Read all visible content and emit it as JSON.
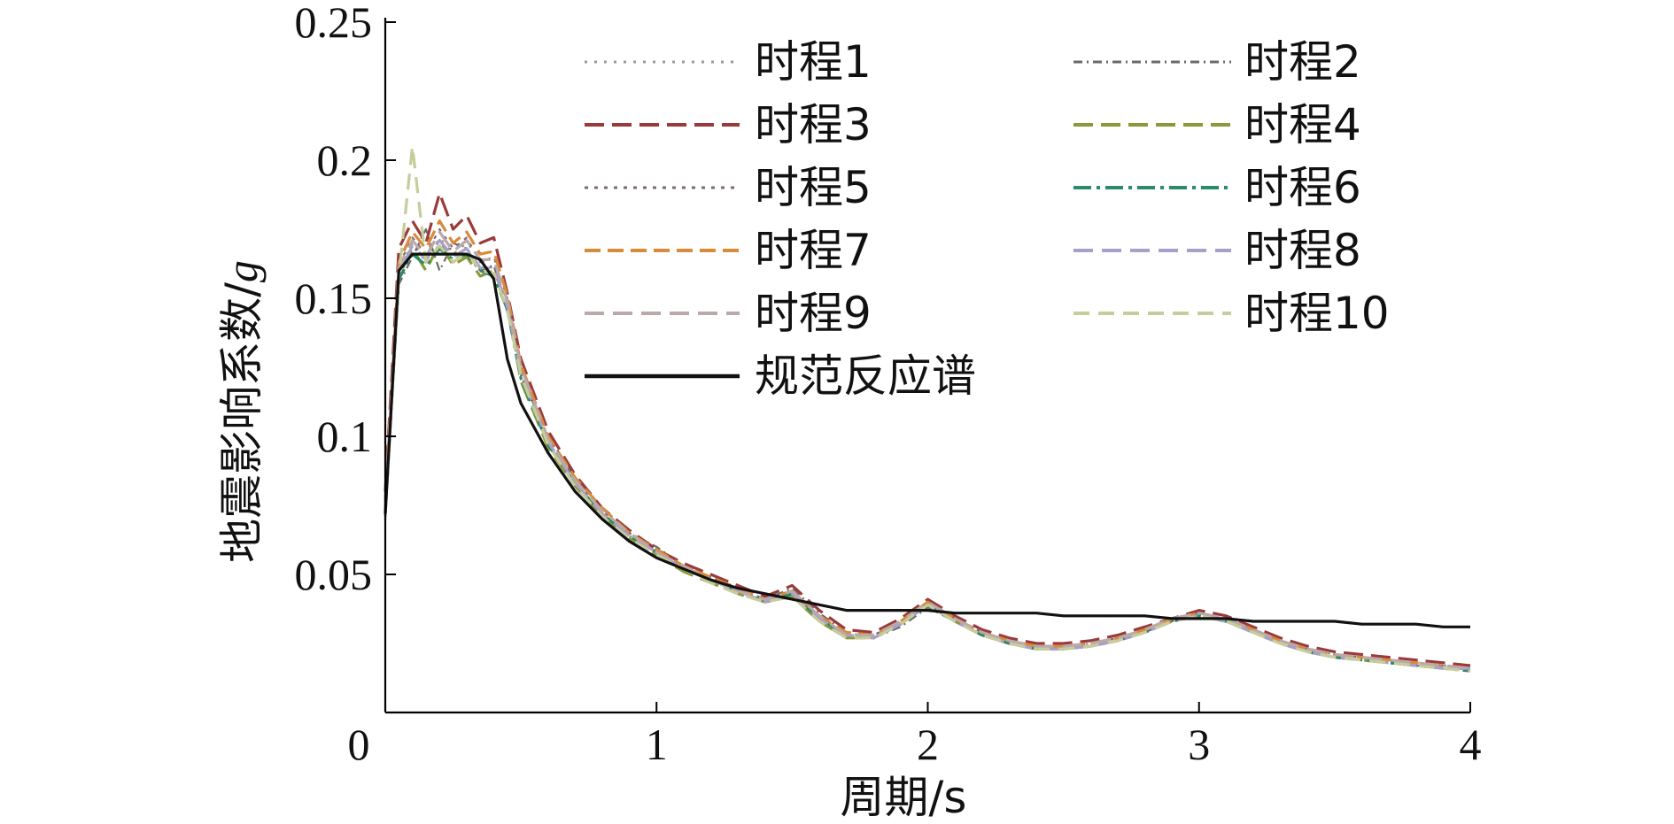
{
  "chart_data": {
    "type": "line",
    "title": "",
    "xlabel": "周期/s",
    "ylabel_main": "地震影响系数/",
    "ylabel_italic": "g",
    "xlim": [
      0,
      4
    ],
    "ylim": [
      0,
      0.25
    ],
    "x_ticks": [
      0,
      1,
      2,
      3,
      4
    ],
    "x_tick_labels": [
      "0",
      "1",
      "2",
      "3",
      "4"
    ],
    "y_ticks": [
      0.05,
      0.1,
      0.15,
      0.2,
      0.25
    ],
    "y_tick_labels": [
      "0.05",
      "0.1",
      "0.15",
      "0.2",
      "0.25"
    ],
    "grid": false,
    "legend_position": "top-right",
    "x": [
      0.0,
      0.05,
      0.1,
      0.15,
      0.2,
      0.25,
      0.3,
      0.35,
      0.4,
      0.45,
      0.5,
      0.6,
      0.7,
      0.8,
      0.9,
      1.0,
      1.1,
      1.2,
      1.3,
      1.4,
      1.5,
      1.6,
      1.7,
      1.8,
      1.9,
      2.0,
      2.1,
      2.2,
      2.3,
      2.4,
      2.5,
      2.6,
      2.7,
      2.8,
      2.9,
      3.0,
      3.1,
      3.2,
      3.3,
      3.4,
      3.5,
      3.6,
      3.7,
      3.8,
      3.9,
      4.0
    ],
    "series": [
      {
        "name": "时程1",
        "color": "#9a9a9a",
        "dash": "3 8",
        "width": 2.2,
        "values": [
          0.075,
          0.16,
          0.17,
          0.163,
          0.172,
          0.166,
          0.17,
          0.165,
          0.16,
          0.15,
          0.125,
          0.098,
          0.083,
          0.072,
          0.064,
          0.058,
          0.052,
          0.048,
          0.044,
          0.04,
          0.043,
          0.034,
          0.028,
          0.028,
          0.033,
          0.04,
          0.034,
          0.029,
          0.026,
          0.024,
          0.024,
          0.025,
          0.027,
          0.03,
          0.034,
          0.036,
          0.034,
          0.03,
          0.026,
          0.023,
          0.021,
          0.02,
          0.019,
          0.018,
          0.017,
          0.017
        ]
      },
      {
        "name": "时程2",
        "color": "#6a6a6a",
        "dash": "10 5 2 5",
        "width": 2.2,
        "values": [
          0.07,
          0.155,
          0.165,
          0.175,
          0.16,
          0.17,
          0.168,
          0.16,
          0.162,
          0.145,
          0.122,
          0.1,
          0.085,
          0.074,
          0.065,
          0.06,
          0.053,
          0.049,
          0.045,
          0.041,
          0.045,
          0.036,
          0.029,
          0.027,
          0.031,
          0.038,
          0.033,
          0.028,
          0.025,
          0.023,
          0.023,
          0.024,
          0.026,
          0.029,
          0.033,
          0.035,
          0.033,
          0.029,
          0.025,
          0.022,
          0.02,
          0.019,
          0.018,
          0.017,
          0.016,
          0.016
        ]
      },
      {
        "name": "时程3",
        "color": "#9b3a3a",
        "dash": "22 9",
        "width": 3.2,
        "values": [
          0.08,
          0.168,
          0.178,
          0.17,
          0.188,
          0.175,
          0.18,
          0.17,
          0.172,
          0.152,
          0.128,
          0.102,
          0.086,
          0.074,
          0.066,
          0.059,
          0.054,
          0.05,
          0.046,
          0.042,
          0.046,
          0.037,
          0.03,
          0.029,
          0.034,
          0.041,
          0.035,
          0.03,
          0.027,
          0.025,
          0.025,
          0.026,
          0.028,
          0.031,
          0.034,
          0.037,
          0.035,
          0.031,
          0.027,
          0.024,
          0.022,
          0.021,
          0.02,
          0.019,
          0.018,
          0.017
        ]
      },
      {
        "name": "时程4",
        "color": "#8a9a3a",
        "dash": "22 9",
        "width": 3.2,
        "values": [
          0.072,
          0.158,
          0.168,
          0.16,
          0.17,
          0.162,
          0.165,
          0.158,
          0.16,
          0.148,
          0.12,
          0.096,
          0.082,
          0.071,
          0.063,
          0.057,
          0.051,
          0.047,
          0.043,
          0.04,
          0.042,
          0.033,
          0.027,
          0.027,
          0.032,
          0.039,
          0.033,
          0.028,
          0.025,
          0.023,
          0.023,
          0.024,
          0.026,
          0.029,
          0.033,
          0.035,
          0.033,
          0.029,
          0.025,
          0.022,
          0.02,
          0.019,
          0.018,
          0.017,
          0.016,
          0.016
        ]
      },
      {
        "name": "时程5",
        "color": "#7a6a7a",
        "dash": "4 7",
        "width": 2.2,
        "values": [
          0.078,
          0.162,
          0.172,
          0.166,
          0.175,
          0.168,
          0.172,
          0.163,
          0.165,
          0.15,
          0.124,
          0.099,
          0.084,
          0.073,
          0.065,
          0.058,
          0.053,
          0.048,
          0.044,
          0.041,
          0.044,
          0.035,
          0.028,
          0.028,
          0.033,
          0.04,
          0.034,
          0.029,
          0.026,
          0.024,
          0.024,
          0.025,
          0.027,
          0.03,
          0.034,
          0.036,
          0.034,
          0.03,
          0.026,
          0.023,
          0.021,
          0.02,
          0.019,
          0.018,
          0.017,
          0.016
        ]
      },
      {
        "name": "时程6",
        "color": "#2a8a6a",
        "dash": "20 6 4 6",
        "width": 3.2,
        "values": [
          0.074,
          0.157,
          0.166,
          0.162,
          0.168,
          0.164,
          0.166,
          0.16,
          0.158,
          0.146,
          0.121,
          0.097,
          0.083,
          0.072,
          0.064,
          0.058,
          0.052,
          0.048,
          0.044,
          0.04,
          0.043,
          0.034,
          0.028,
          0.027,
          0.032,
          0.039,
          0.033,
          0.028,
          0.025,
          0.023,
          0.023,
          0.024,
          0.026,
          0.029,
          0.033,
          0.035,
          0.033,
          0.029,
          0.025,
          0.022,
          0.02,
          0.019,
          0.018,
          0.017,
          0.016,
          0.015
        ]
      },
      {
        "name": "时程7",
        "color": "#d98a3a",
        "dash": "18 8",
        "width": 3.2,
        "values": [
          0.076,
          0.163,
          0.174,
          0.168,
          0.178,
          0.17,
          0.174,
          0.166,
          0.167,
          0.151,
          0.126,
          0.1,
          0.085,
          0.074,
          0.065,
          0.059,
          0.053,
          0.049,
          0.045,
          0.041,
          0.044,
          0.035,
          0.029,
          0.028,
          0.033,
          0.04,
          0.034,
          0.029,
          0.026,
          0.024,
          0.024,
          0.025,
          0.027,
          0.03,
          0.034,
          0.036,
          0.034,
          0.03,
          0.026,
          0.023,
          0.021,
          0.02,
          0.019,
          0.018,
          0.017,
          0.016
        ]
      },
      {
        "name": "时程8",
        "color": "#a8a0c8",
        "dash": "22 10",
        "width": 3.2,
        "values": [
          0.071,
          0.159,
          0.169,
          0.164,
          0.171,
          0.165,
          0.168,
          0.161,
          0.161,
          0.147,
          0.123,
          0.098,
          0.083,
          0.072,
          0.064,
          0.058,
          0.052,
          0.048,
          0.044,
          0.04,
          0.043,
          0.034,
          0.028,
          0.027,
          0.032,
          0.039,
          0.033,
          0.028,
          0.025,
          0.023,
          0.023,
          0.024,
          0.026,
          0.029,
          0.033,
          0.035,
          0.033,
          0.029,
          0.025,
          0.022,
          0.02,
          0.019,
          0.018,
          0.017,
          0.016,
          0.016
        ]
      },
      {
        "name": "时程9",
        "color": "#bba8a8",
        "dash": "22 10",
        "width": 3.2,
        "values": [
          0.077,
          0.161,
          0.171,
          0.165,
          0.174,
          0.167,
          0.171,
          0.164,
          0.164,
          0.149,
          0.125,
          0.099,
          0.084,
          0.073,
          0.065,
          0.058,
          0.053,
          0.048,
          0.044,
          0.041,
          0.044,
          0.035,
          0.028,
          0.028,
          0.033,
          0.04,
          0.034,
          0.029,
          0.026,
          0.024,
          0.024,
          0.025,
          0.027,
          0.03,
          0.034,
          0.036,
          0.034,
          0.03,
          0.026,
          0.023,
          0.021,
          0.02,
          0.019,
          0.018,
          0.017,
          0.016
        ]
      },
      {
        "name": "时程10",
        "color": "#c8cc9a",
        "dash": "18 10",
        "width": 3.2,
        "values": [
          0.073,
          0.158,
          0.205,
          0.163,
          0.169,
          0.163,
          0.167,
          0.16,
          0.159,
          0.146,
          0.122,
          0.097,
          0.082,
          0.071,
          0.063,
          0.057,
          0.052,
          0.047,
          0.043,
          0.04,
          0.042,
          0.033,
          0.027,
          0.027,
          0.032,
          0.039,
          0.033,
          0.028,
          0.025,
          0.023,
          0.023,
          0.024,
          0.026,
          0.029,
          0.033,
          0.035,
          0.033,
          0.029,
          0.025,
          0.022,
          0.02,
          0.019,
          0.018,
          0.017,
          0.016,
          0.015
        ]
      },
      {
        "name": "规范反应谱",
        "color": "#111111",
        "dash": "",
        "width": 3.2,
        "values": [
          0.072,
          0.16,
          0.166,
          0.166,
          0.166,
          0.166,
          0.166,
          0.164,
          0.157,
          0.128,
          0.112,
          0.094,
          0.08,
          0.07,
          0.062,
          0.056,
          0.052,
          0.048,
          0.045,
          0.043,
          0.041,
          0.039,
          0.037,
          0.037,
          0.037,
          0.037,
          0.036,
          0.036,
          0.036,
          0.036,
          0.035,
          0.035,
          0.035,
          0.035,
          0.034,
          0.034,
          0.034,
          0.033,
          0.033,
          0.033,
          0.033,
          0.032,
          0.032,
          0.032,
          0.031,
          0.031
        ]
      }
    ]
  }
}
